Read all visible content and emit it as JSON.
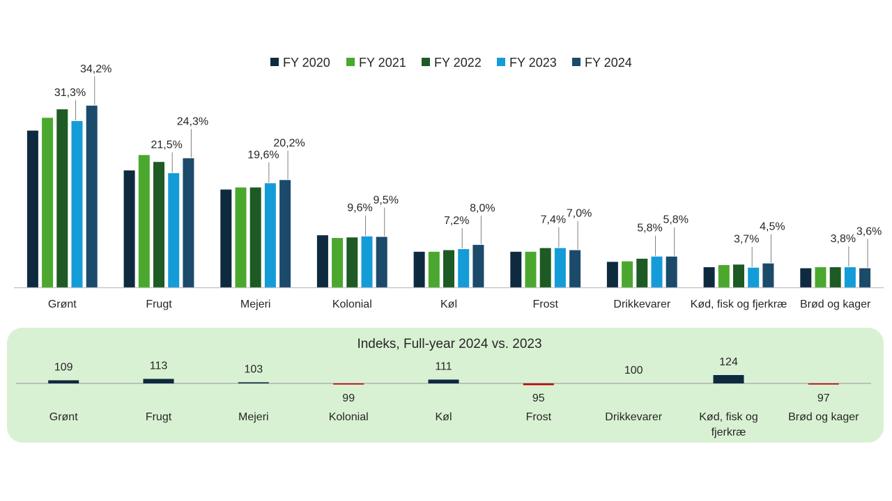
{
  "chart_data": [
    {
      "type": "bar",
      "title": "",
      "categories": [
        "Grønt",
        "Frugt",
        "Mejeri",
        "Kolonial",
        "Køl",
        "Frost",
        "Drikkevarer",
        "Kød, fisk og fjerkræ",
        "Brød og kager"
      ],
      "series": [
        {
          "name": "FY 2020",
          "color": "#0e2a3f",
          "values": [
            29.5,
            22.0,
            18.4,
            9.8,
            6.7,
            6.7,
            4.8,
            3.8,
            3.6
          ]
        },
        {
          "name": "FY 2021",
          "color": "#4aa82e",
          "values": [
            31.9,
            24.9,
            18.8,
            9.3,
            6.7,
            6.7,
            4.9,
            4.2,
            3.8
          ]
        },
        {
          "name": "FY 2022",
          "color": "#1d5a24",
          "values": [
            33.5,
            23.6,
            18.8,
            9.4,
            7.0,
            7.4,
            5.4,
            4.3,
            3.8
          ]
        },
        {
          "name": "FY 2023",
          "color": "#149cd8",
          "values": [
            31.3,
            21.5,
            19.6,
            9.6,
            7.2,
            7.4,
            5.8,
            3.7,
            3.8
          ]
        },
        {
          "name": "FY 2024",
          "color": "#1b4a6b",
          "values": [
            34.2,
            24.3,
            20.2,
            9.5,
            8.0,
            7.0,
            5.8,
            4.5,
            3.6
          ]
        }
      ],
      "data_labels": [
        {
          "category_index": 0,
          "series_index": 3,
          "text": "31,3%"
        },
        {
          "category_index": 0,
          "series_index": 4,
          "text": "34,2%"
        },
        {
          "category_index": 1,
          "series_index": 3,
          "text": "21,5%"
        },
        {
          "category_index": 1,
          "series_index": 4,
          "text": "24,3%"
        },
        {
          "category_index": 2,
          "series_index": 3,
          "text": "19,6%"
        },
        {
          "category_index": 2,
          "series_index": 4,
          "text": "20,2%"
        },
        {
          "category_index": 3,
          "series_index": 3,
          "text": "9,6%"
        },
        {
          "category_index": 3,
          "series_index": 4,
          "text": "9,5%"
        },
        {
          "category_index": 4,
          "series_index": 3,
          "text": "7,2%"
        },
        {
          "category_index": 4,
          "series_index": 4,
          "text": "8,0%"
        },
        {
          "category_index": 5,
          "series_index": 3,
          "text": "7,4%"
        },
        {
          "category_index": 5,
          "series_index": 4,
          "text": "7,0%"
        },
        {
          "category_index": 6,
          "series_index": 3,
          "text": "5,8%"
        },
        {
          "category_index": 6,
          "series_index": 4,
          "text": "5,8%"
        },
        {
          "category_index": 7,
          "series_index": 3,
          "text": "3,7%"
        },
        {
          "category_index": 7,
          "series_index": 4,
          "text": "4,5%"
        },
        {
          "category_index": 8,
          "series_index": 3,
          "text": "3,8%"
        },
        {
          "category_index": 8,
          "series_index": 4,
          "text": "3,6%"
        }
      ],
      "ylim": [
        0,
        36
      ],
      "xlabel": "",
      "ylabel": "",
      "legend": "top-center",
      "grid": false
    },
    {
      "type": "bar",
      "title": "Indeks, Full-year 2024 vs. 2023",
      "categories": [
        "Grønt",
        "Frugt",
        "Mejeri",
        "Kolonial",
        "Køl",
        "Frost",
        "Drikkevarer",
        "Kød, fisk og fjerkræ",
        "Brød og kager"
      ],
      "category_lines": [
        [
          "Grønt"
        ],
        [
          "Frugt"
        ],
        [
          "Mejeri"
        ],
        [
          "Kolonial"
        ],
        [
          "Køl"
        ],
        [
          "Frost"
        ],
        [
          "Drikkevarer"
        ],
        [
          "Kød, fisk og",
          "fjerkræ"
        ],
        [
          "Brød og kager"
        ]
      ],
      "values": [
        109,
        113,
        103,
        99,
        111,
        95,
        100,
        124,
        97
      ],
      "value_labels": [
        "109",
        "113",
        "103",
        "99",
        "111",
        "95",
        "100",
        "124",
        "97"
      ],
      "baseline": 100,
      "positive_color": "#0e2a3f",
      "negative_color": "#c00000",
      "panel_color": "#d9f1d3",
      "legend": "none",
      "grid": false
    }
  ]
}
